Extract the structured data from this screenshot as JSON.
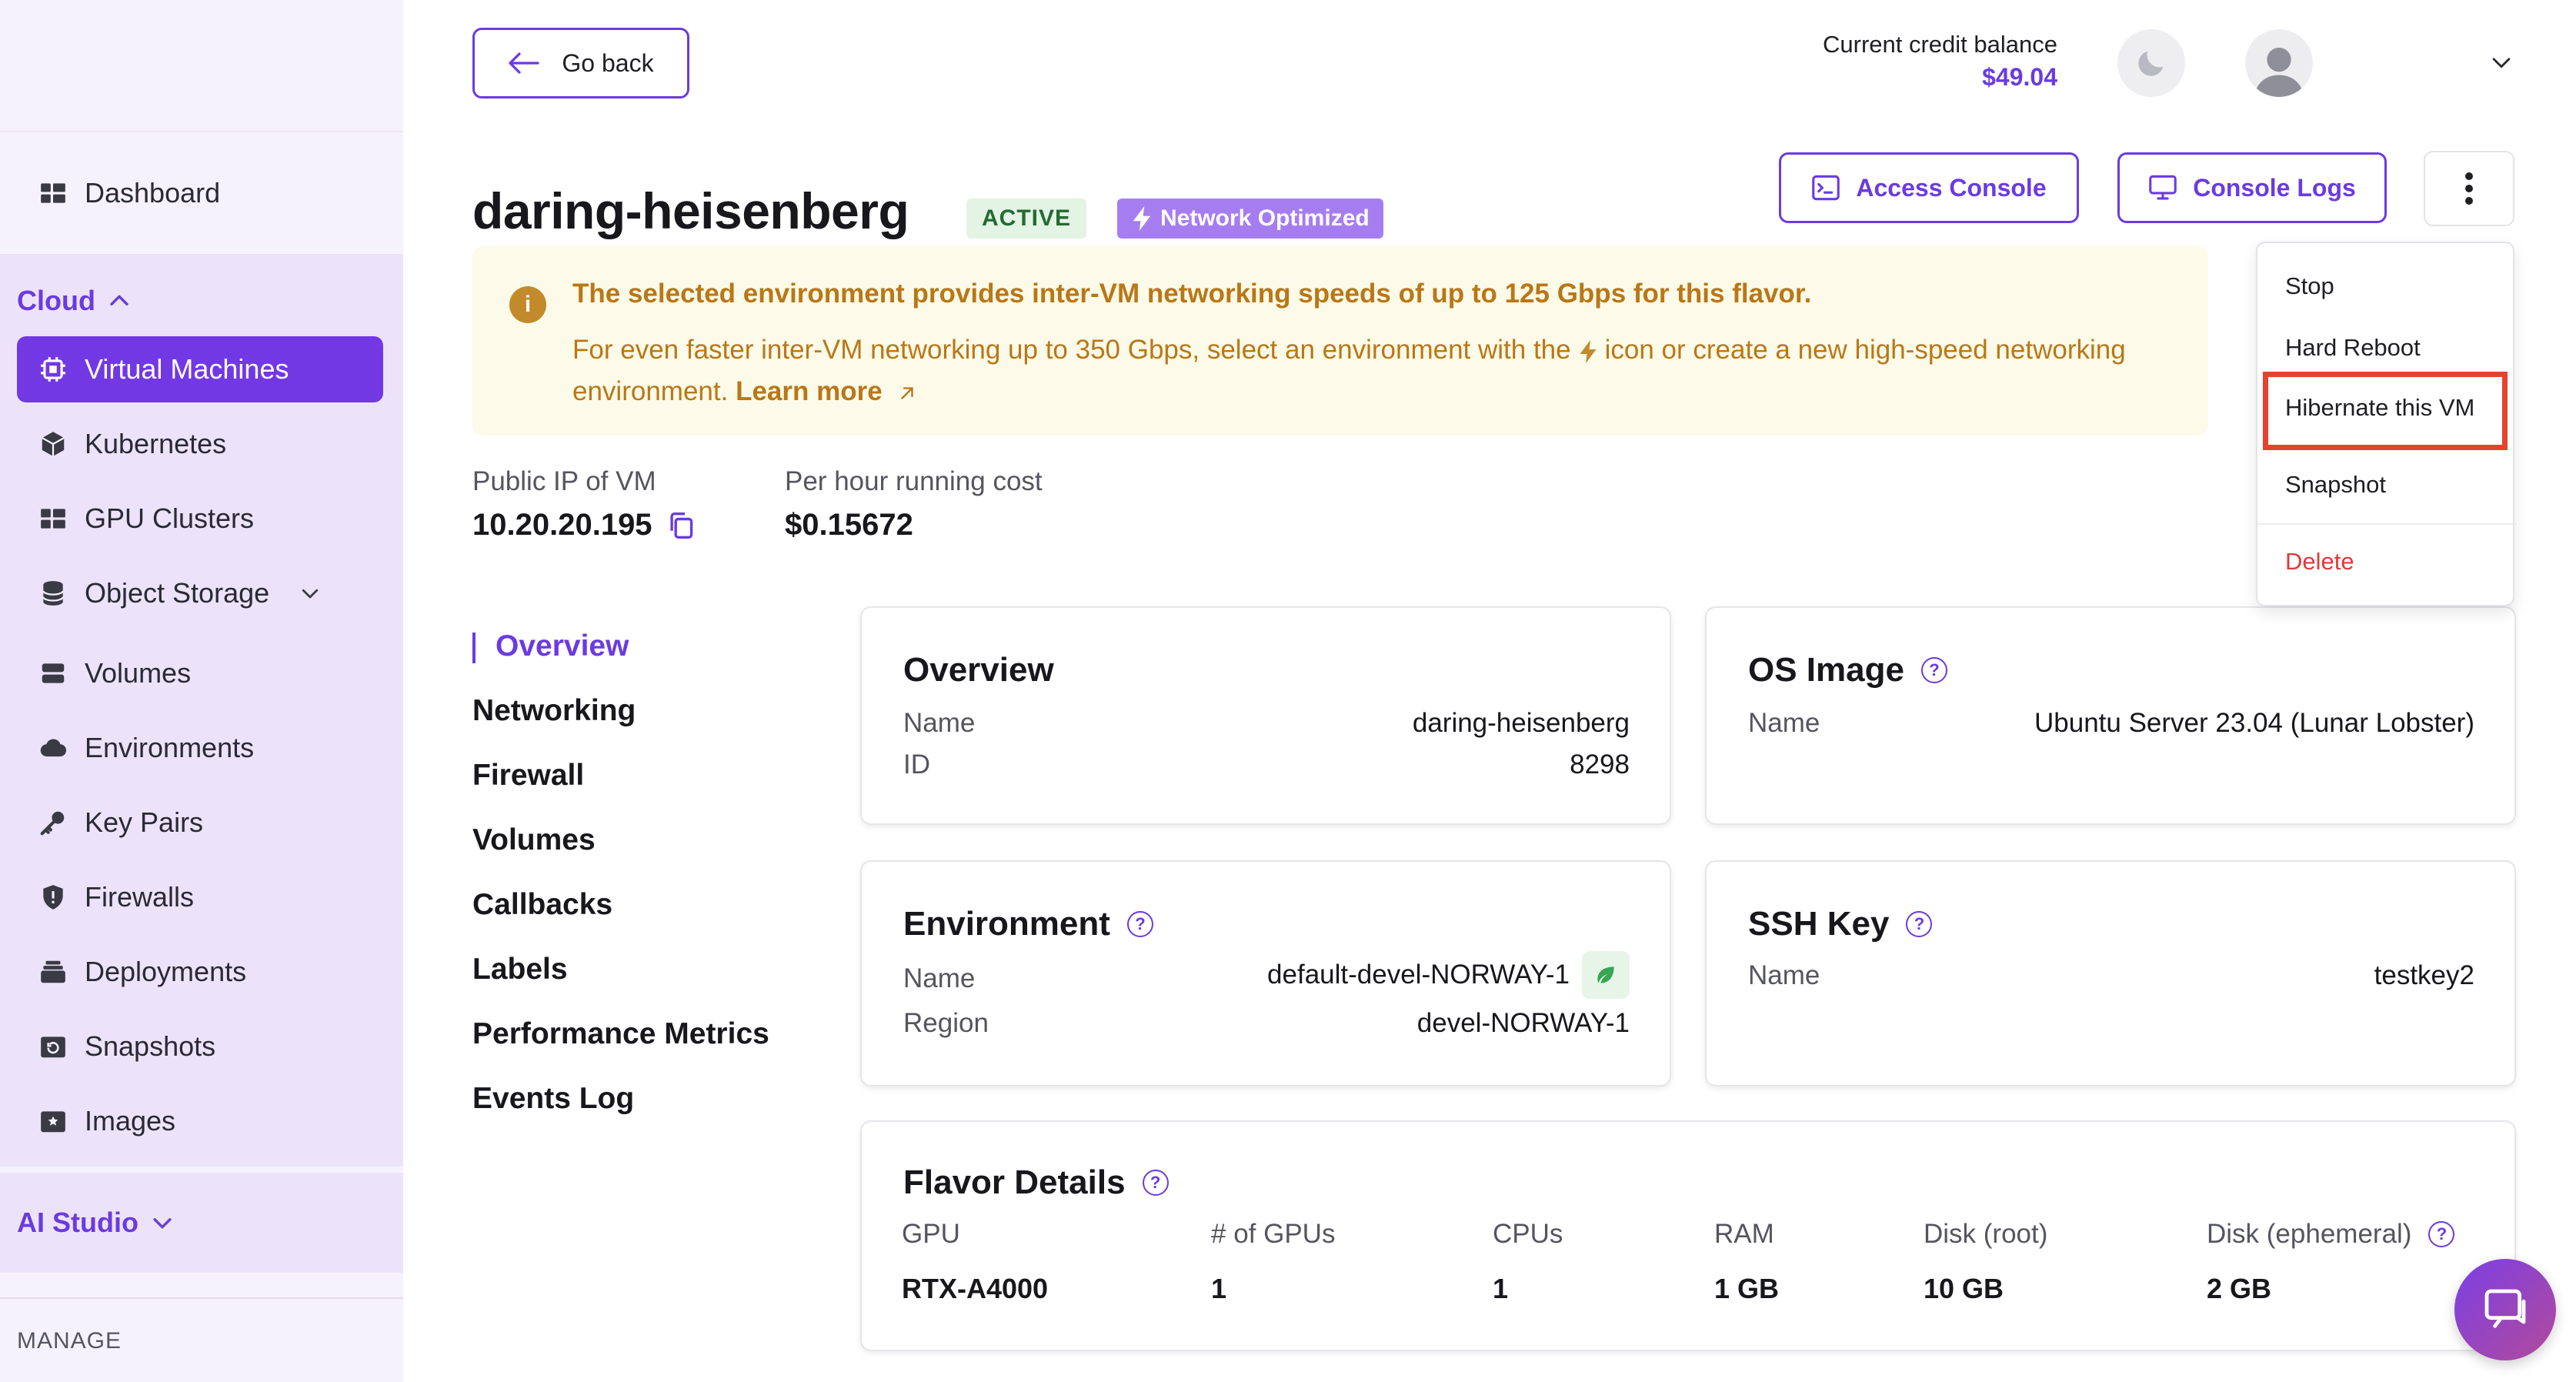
{
  "sidebar": {
    "dashboard": "Dashboard",
    "cloud_section": "Cloud",
    "items": [
      {
        "label": "Virtual Machines"
      },
      {
        "label": "Kubernetes"
      },
      {
        "label": "GPU Clusters"
      },
      {
        "label": "Object Storage"
      },
      {
        "label": "Volumes"
      },
      {
        "label": "Environments"
      },
      {
        "label": "Key Pairs"
      },
      {
        "label": "Firewalls"
      },
      {
        "label": "Deployments"
      },
      {
        "label": "Snapshots"
      },
      {
        "label": "Images"
      }
    ],
    "ai_section": "AI Studio",
    "manage_label": "MANAGE"
  },
  "header": {
    "go_back": "Go back",
    "credit_label": "Current credit balance",
    "credit_value": "$49.04"
  },
  "vm": {
    "name": "daring-heisenberg",
    "status": "ACTIVE",
    "network_badge": "Network Optimized",
    "access_console": "Access Console",
    "console_logs": "Console Logs"
  },
  "banner": {
    "title": "The selected environment provides inter-VM networking speeds of up to 125 Gbps for this flavor.",
    "text_before": "For even faster inter-VM networking up to 350 Gbps, select an environment with the",
    "text_after": "icon or create a new high-speed networking environment.",
    "link": "Learn more"
  },
  "stats": {
    "ip_label": "Public IP of VM",
    "ip_value": "10.20.20.195",
    "cost_label": "Per hour running cost",
    "cost_value": "$0.15672"
  },
  "nav": {
    "items": [
      "Overview",
      "Networking",
      "Firewall",
      "Volumes",
      "Callbacks",
      "Labels",
      "Performance Metrics",
      "Events Log"
    ]
  },
  "overview_card": {
    "title": "Overview",
    "name_label": "Name",
    "name_value": "daring-heisenberg",
    "id_label": "ID",
    "id_value": "8298"
  },
  "os_card": {
    "title": "OS Image",
    "name_label": "Name",
    "name_value": "Ubuntu Server 23.04 (Lunar Lobster)"
  },
  "env_card": {
    "title": "Environment",
    "name_label": "Name",
    "name_value": "default-devel-NORWAY-1",
    "region_label": "Region",
    "region_value": "devel-NORWAY-1"
  },
  "ssh_card": {
    "title": "SSH Key",
    "name_label": "Name",
    "name_value": "testkey2"
  },
  "flavor_card": {
    "title": "Flavor Details",
    "columns": [
      {
        "label": "GPU",
        "value": "RTX-A4000"
      },
      {
        "label": "# of GPUs",
        "value": "1"
      },
      {
        "label": "CPUs",
        "value": "1"
      },
      {
        "label": "RAM",
        "value": "1 GB"
      },
      {
        "label": "Disk (root)",
        "value": "10 GB"
      },
      {
        "label": "Disk (ephemeral)",
        "value": "2 GB"
      }
    ]
  },
  "menu": {
    "items": [
      "Stop",
      "Hard Reboot",
      "Hibernate this VM",
      "Snapshot",
      "Delete"
    ]
  },
  "colors": {
    "brand": "#6b3be0",
    "warning_text": "#b97717",
    "danger": "#dc3b3b",
    "highlight": "#e5432e"
  }
}
